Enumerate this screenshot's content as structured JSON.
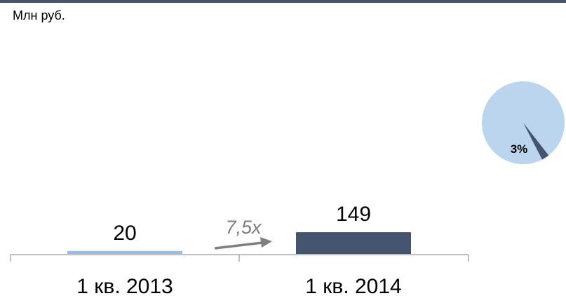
{
  "chart_data": [
    {
      "type": "bar",
      "unit_label": "Млн руб.",
      "categories": [
        "1 кв. 2013",
        "1 кв. 2014"
      ],
      "values": [
        20,
        149
      ],
      "value_labels": [
        "20",
        "149"
      ],
      "growth_label": "7,5x",
      "bar_colors": [
        "#9dbbe0",
        "#44536e"
      ],
      "ylim": [
        0,
        1600
      ],
      "grid": false,
      "legend": "none"
    },
    {
      "type": "pie",
      "values": [
        97,
        3
      ],
      "slice_labels": [
        "",
        "3%"
      ],
      "slice_colors": [
        "#bcd5ee",
        "#44536e"
      ],
      "legend": "none"
    }
  ],
  "colors": {
    "top_rule": "#44536e",
    "axis": "#9a9a9a",
    "arrow": "#808080",
    "growth_text": "#7f7f7f"
  },
  "icons": {
    "growth_arrow": "arrow-right-up-icon"
  }
}
